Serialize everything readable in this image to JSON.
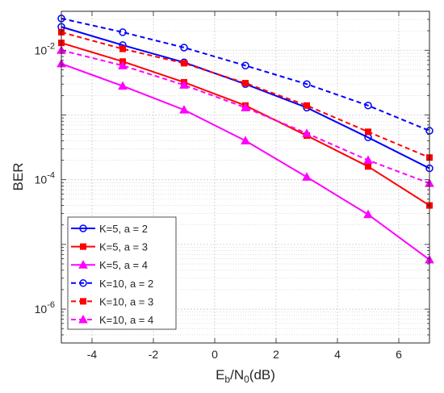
{
  "chart_data": {
    "type": "line",
    "xlabel": {
      "base": "E",
      "sub1": "b",
      "mid": "/N",
      "sub2": "0",
      "tail": "(dB)"
    },
    "ylabel": "BER",
    "xlim": [
      -5,
      7
    ],
    "ylim": [
      3e-07,
      0.04
    ],
    "yscale": "log",
    "x_ticks": [
      -4,
      -2,
      0,
      2,
      4,
      6
    ],
    "x_tick_labels": [
      "-4",
      "-2",
      "0",
      "2",
      "4",
      "6"
    ],
    "y_ticks": [
      1e-06,
      0.0001,
      0.01
    ],
    "y_tick_labels": [
      {
        "base": "10",
        "exp": "-6"
      },
      {
        "base": "10",
        "exp": "-4"
      },
      {
        "base": "10",
        "exp": "-2"
      }
    ],
    "grid": true,
    "legend_position": "bottom-left",
    "x": [
      -5,
      -3,
      -1,
      1,
      3,
      5,
      7
    ],
    "series": [
      {
        "name": "K=5, a = 2",
        "color": "#0000ff",
        "line": "solid",
        "marker": "circle",
        "values": [
          0.023,
          0.012,
          0.0065,
          0.003,
          0.0013,
          0.00045,
          0.00015
        ]
      },
      {
        "name": "K=5, a = 3",
        "color": "#ff0000",
        "line": "solid",
        "marker": "square",
        "values": [
          0.013,
          0.0067,
          0.0032,
          0.0014,
          0.00048,
          0.00016,
          4e-05
        ]
      },
      {
        "name": "K=5, a = 4",
        "color": "#ff00ff",
        "line": "solid",
        "marker": "triangle",
        "values": [
          0.0062,
          0.0028,
          0.0012,
          0.0004,
          0.00011,
          2.9e-05,
          5.8e-06
        ]
      },
      {
        "name": "K=10, a = 2",
        "color": "#0000ff",
        "line": "dashed",
        "marker": "circle",
        "values": [
          0.031,
          0.019,
          0.011,
          0.0058,
          0.003,
          0.0014,
          0.00057
        ]
      },
      {
        "name": "K=10, a = 3",
        "color": "#ff0000",
        "line": "dashed",
        "marker": "square",
        "values": [
          0.019,
          0.0105,
          0.0063,
          0.0031,
          0.0014,
          0.00055,
          0.00022
        ]
      },
      {
        "name": "K=10, a = 4",
        "color": "#ff00ff",
        "line": "dashed",
        "marker": "triangle",
        "values": [
          0.01,
          0.0058,
          0.0029,
          0.0013,
          0.00052,
          0.0002,
          8.8e-05
        ]
      }
    ]
  }
}
